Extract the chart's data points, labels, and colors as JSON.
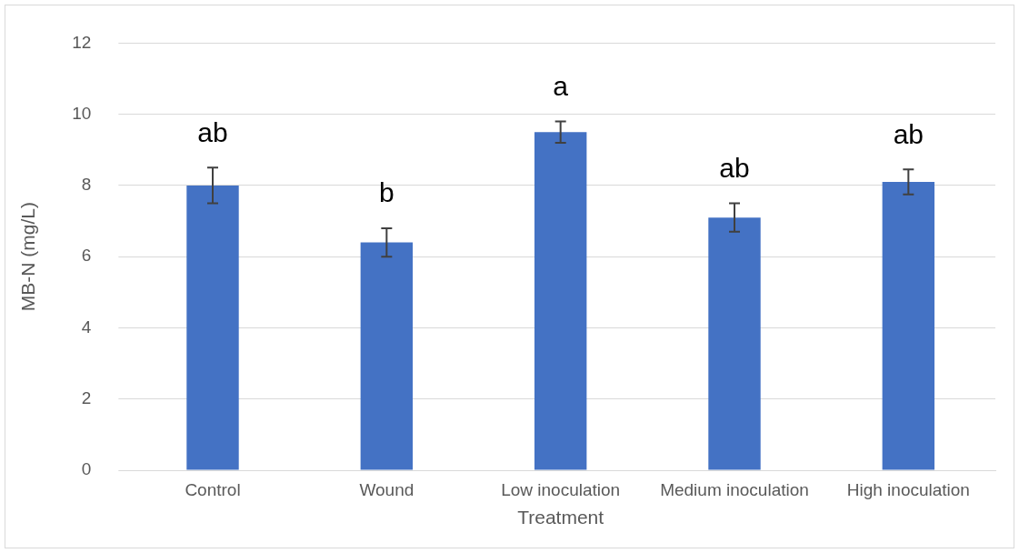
{
  "chart_data": {
    "type": "bar",
    "xlabel": "Treatment",
    "ylabel": "MB-N (mg/L)",
    "categories": [
      "Control",
      "Wound",
      "Low inoculation",
      "Medium inoculation",
      "High inoculation"
    ],
    "values": [
      8.0,
      6.4,
      9.5,
      7.1,
      8.1
    ],
    "errors": [
      0.5,
      0.4,
      0.3,
      0.4,
      0.35
    ],
    "color": "#4472c4",
    "ylim": [
      0,
      12
    ],
    "yticks": [
      0,
      2,
      4,
      6,
      8,
      10,
      12
    ],
    "grid": "y",
    "legend": false,
    "annotations": [
      {
        "text": "ab",
        "x": "Control",
        "y": 8.5
      },
      {
        "text": "b",
        "x": "Wound",
        "y": 6.8
      },
      {
        "text": "a",
        "x": "Low inoculation",
        "y": 9.8
      },
      {
        "text": "ab",
        "x": "Medium inoculation",
        "y": 7.5
      },
      {
        "text": "ab",
        "x": "High inoculation",
        "y": 8.45
      }
    ]
  }
}
